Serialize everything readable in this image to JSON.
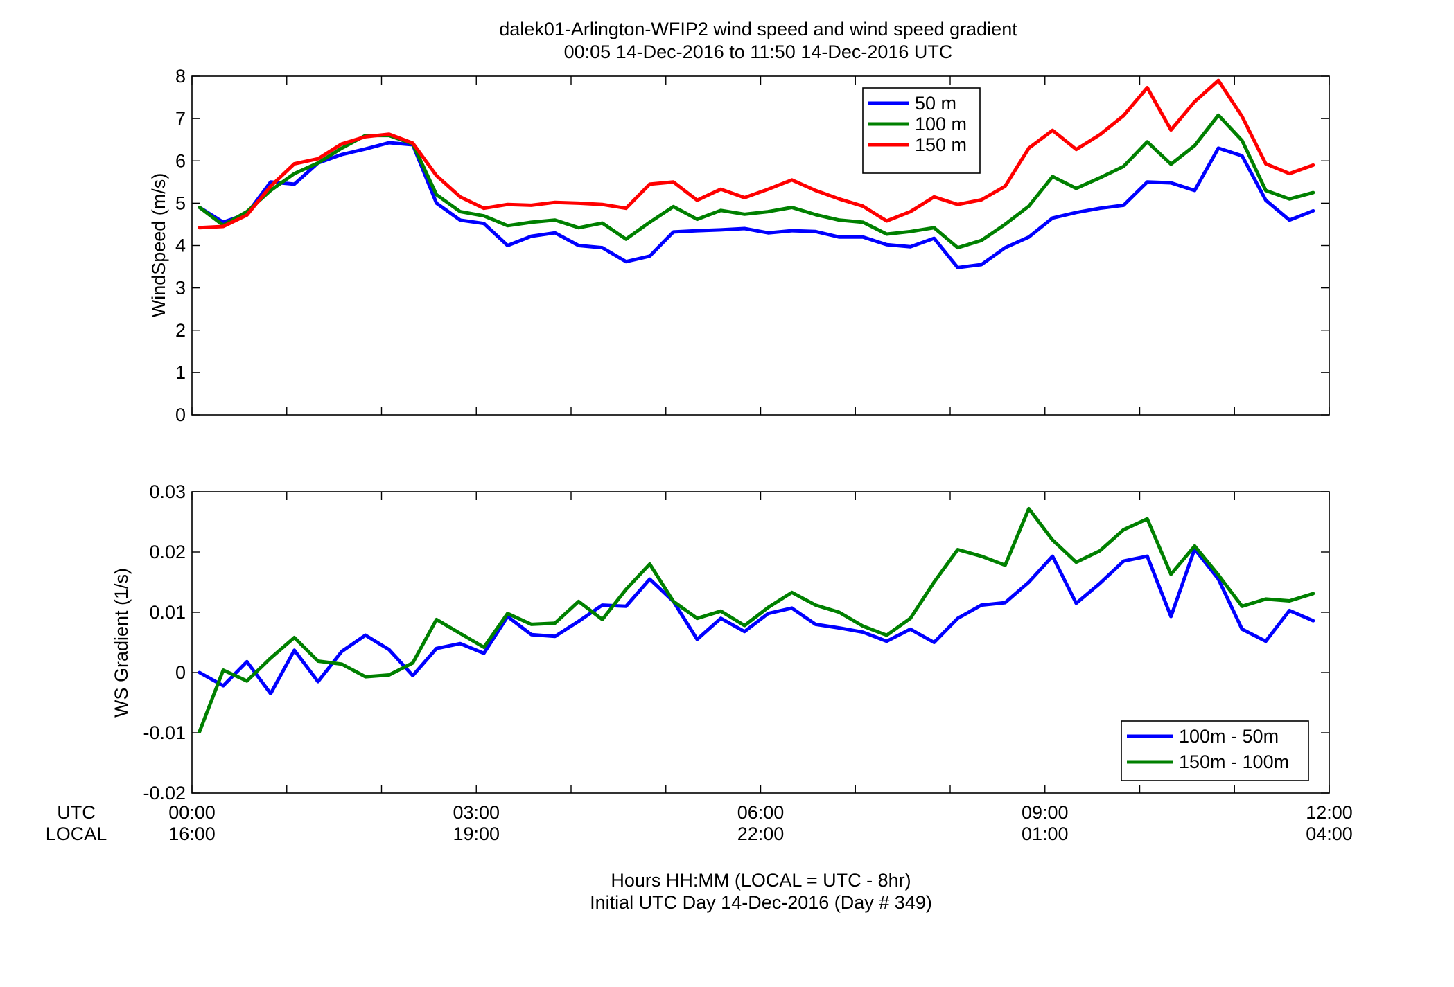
{
  "title": {
    "line1": "dalek01-Arlington-WFIP2  wind speed and wind speed gradient",
    "line2": "00:05 14-Dec-2016 to 11:50 14-Dec-2016  UTC"
  },
  "xaxis": {
    "row_label_utc": "UTC",
    "row_label_local": "LOCAL",
    "ticks_utc": [
      "00:00",
      "03:00",
      "06:00",
      "09:00",
      "12:00"
    ],
    "ticks_local": [
      "16:00",
      "19:00",
      "22:00",
      "01:00",
      "04:00"
    ],
    "label_line1": "Hours HH:MM  (LOCAL = UTC - 8hr)",
    "label_line2": "Initial UTC Day 14-Dec-2016 (Day # 349)"
  },
  "chart_data": [
    {
      "type": "line",
      "xunit": "hours UTC",
      "xlim": [
        0,
        12
      ],
      "ylim": [
        0,
        8
      ],
      "ylabel": "WindSpeed (m/s)",
      "ytick_labels": [
        "0",
        "1",
        "2",
        "3",
        "4",
        "5",
        "6",
        "7",
        "8"
      ],
      "legend_position": "top-right",
      "x": [
        0.08,
        0.33,
        0.58,
        0.83,
        1.08,
        1.33,
        1.58,
        1.83,
        2.08,
        2.33,
        2.58,
        2.83,
        3.08,
        3.33,
        3.58,
        3.83,
        4.08,
        4.33,
        4.58,
        4.83,
        5.08,
        5.33,
        5.58,
        5.83,
        6.08,
        6.33,
        6.58,
        6.83,
        7.08,
        7.33,
        7.58,
        7.83,
        8.08,
        8.33,
        8.58,
        8.83,
        9.08,
        9.33,
        9.58,
        9.83,
        10.08,
        10.33,
        10.58,
        10.83,
        11.08,
        11.33,
        11.58,
        11.83
      ],
      "series": [
        {
          "name": "50 m",
          "color": "#0000ff",
          "values": [
            4.9,
            4.55,
            4.75,
            5.5,
            5.45,
            5.95,
            6.15,
            6.28,
            6.43,
            6.38,
            5.0,
            4.6,
            4.52,
            4.0,
            4.22,
            4.3,
            4.0,
            3.95,
            3.62,
            3.75,
            4.32,
            4.35,
            4.37,
            4.4,
            4.3,
            4.35,
            4.33,
            4.2,
            4.2,
            4.02,
            3.97,
            4.17,
            3.48,
            3.55,
            3.95,
            4.2,
            4.65,
            4.78,
            4.88,
            4.95,
            5.5,
            5.48,
            5.3,
            6.3,
            6.12,
            5.07,
            4.6,
            4.82
          ]
        },
        {
          "name": "100 m",
          "color": "#008000",
          "values": [
            4.9,
            4.48,
            4.8,
            5.3,
            5.7,
            5.95,
            6.3,
            6.6,
            6.6,
            6.4,
            5.2,
            4.8,
            4.7,
            4.47,
            4.55,
            4.6,
            4.42,
            4.53,
            4.15,
            4.55,
            4.92,
            4.62,
            4.83,
            4.74,
            4.8,
            4.9,
            4.73,
            4.6,
            4.55,
            4.27,
            4.33,
            4.42,
            3.95,
            4.12,
            4.5,
            4.93,
            5.63,
            5.35,
            5.6,
            5.87,
            6.45,
            5.92,
            6.36,
            7.08,
            6.48,
            5.3,
            5.1,
            5.25
          ]
        },
        {
          "name": "150 m",
          "color": "#ff0000",
          "values": [
            4.42,
            4.45,
            4.72,
            5.4,
            5.93,
            6.05,
            6.4,
            6.57,
            6.63,
            6.42,
            5.65,
            5.15,
            4.88,
            4.97,
            4.95,
            5.02,
            5.0,
            4.97,
            4.88,
            5.45,
            5.5,
            5.07,
            5.33,
            5.13,
            5.33,
            5.55,
            5.3,
            5.1,
            4.93,
            4.58,
            4.8,
            5.15,
            4.97,
            5.08,
            5.4,
            6.3,
            6.72,
            6.27,
            6.62,
            7.07,
            7.73,
            6.73,
            7.4,
            7.9,
            7.05,
            5.93,
            5.7,
            5.9
          ]
        }
      ]
    },
    {
      "type": "line",
      "xunit": "hours UTC",
      "xlim": [
        0,
        12
      ],
      "ylim": [
        -0.02,
        0.03
      ],
      "ylabel": "WS Gradient (1/s)",
      "ytick_values": [
        -0.02,
        -0.01,
        0,
        0.01,
        0.02,
        0.03
      ],
      "ytick_labels": [
        "-0.02",
        "-0.01",
        "0",
        "0.01",
        "0.02",
        "0.03"
      ],
      "legend_position": "bottom-right",
      "x": [
        0.08,
        0.33,
        0.58,
        0.83,
        1.08,
        1.33,
        1.58,
        1.83,
        2.08,
        2.33,
        2.58,
        2.83,
        3.08,
        3.33,
        3.58,
        3.83,
        4.08,
        4.33,
        4.58,
        4.83,
        5.08,
        5.33,
        5.58,
        5.83,
        6.08,
        6.33,
        6.58,
        6.83,
        7.08,
        7.33,
        7.58,
        7.83,
        8.08,
        8.33,
        8.58,
        8.83,
        9.08,
        9.33,
        9.58,
        9.83,
        10.08,
        10.33,
        10.58,
        10.83,
        11.08,
        11.33,
        11.58,
        11.83
      ],
      "series": [
        {
          "name": "100m - 50m",
          "color": "#0000ff",
          "values": [
            0.0,
            -0.0022,
            0.0018,
            -0.0035,
            0.0037,
            -0.0015,
            0.0035,
            0.0062,
            0.0038,
            -0.0005,
            0.004,
            0.0048,
            0.0032,
            0.0093,
            0.0063,
            0.006,
            0.0085,
            0.0112,
            0.011,
            0.0155,
            0.0118,
            0.0055,
            0.009,
            0.0068,
            0.0098,
            0.0107,
            0.008,
            0.0074,
            0.0067,
            0.0052,
            0.0072,
            0.005,
            0.009,
            0.0112,
            0.0116,
            0.015,
            0.0193,
            0.0115,
            0.0148,
            0.0185,
            0.0193,
            0.0093,
            0.0205,
            0.0155,
            0.0072,
            0.0052,
            0.0103,
            0.0086
          ]
        },
        {
          "name": "150m - 100m",
          "color": "#008000",
          "values": [
            -0.0098,
            0.0004,
            -0.0014,
            0.0024,
            0.0058,
            0.0019,
            0.0014,
            -0.0007,
            -0.0004,
            0.0016,
            0.0088,
            0.0065,
            0.0042,
            0.0098,
            0.008,
            0.0082,
            0.0118,
            0.0088,
            0.0138,
            0.018,
            0.0118,
            0.009,
            0.0102,
            0.0078,
            0.0108,
            0.0133,
            0.0112,
            0.01,
            0.0077,
            0.0062,
            0.009,
            0.015,
            0.0204,
            0.0193,
            0.0178,
            0.0272,
            0.022,
            0.0183,
            0.0202,
            0.0237,
            0.0255,
            0.0163,
            0.021,
            0.0162,
            0.011,
            0.0122,
            0.0119,
            0.0131
          ]
        }
      ]
    }
  ]
}
